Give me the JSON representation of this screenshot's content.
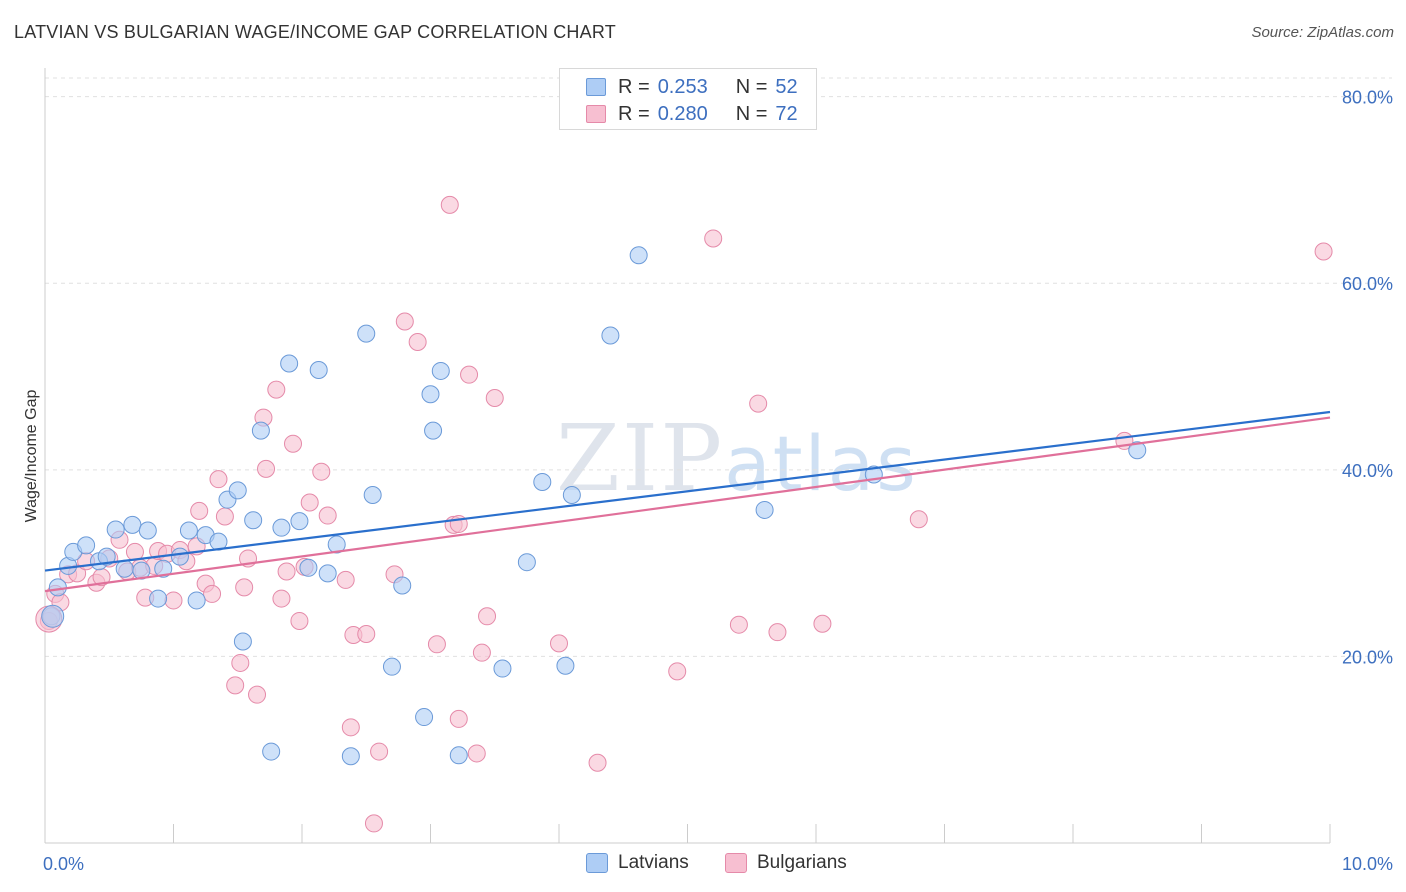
{
  "title": "LATVIAN VS BULGARIAN WAGE/INCOME GAP CORRELATION CHART",
  "source": "Source: ZipAtlas.com",
  "watermark": "ZIPatlas",
  "colors": {
    "latvian_fill": "#aecdf5",
    "latvian_stroke": "#6b9ad8",
    "latvian_line": "#2a6fcc",
    "bulgarian_fill": "#f7bfd1",
    "bulgarian_stroke": "#e58aa9",
    "bulgarian_line": "#e0709a",
    "tick_label": "#3d6fbf",
    "grid": "#e0e0e0"
  },
  "legend_top": [
    {
      "r_label": "R =",
      "r_value": "0.253",
      "n_label": "N =",
      "n_value": "52"
    },
    {
      "r_label": "R =",
      "r_value": "0.280",
      "n_label": "N =",
      "n_value": "72"
    }
  ],
  "chart_data": {
    "type": "scatter",
    "title": "LATVIAN VS BULGARIAN WAGE/INCOME GAP CORRELATION CHART",
    "xlabel": "",
    "ylabel": "Wage/Income Gap",
    "xlim": [
      0,
      10
    ],
    "ylim": [
      0,
      82
    ],
    "x_tick_labels": [
      "0.0%",
      "10.0%"
    ],
    "y_ticks": [
      20,
      40,
      60,
      80
    ],
    "y_tick_labels": [
      "20.0%",
      "40.0%",
      "60.0%",
      "80.0%"
    ],
    "grid": true,
    "legend_position": "bottom",
    "series": [
      {
        "name": "Latvians",
        "trend": {
          "x0": 0,
          "y0": 29.2,
          "x1": 10,
          "y1": 46.2
        },
        "points": [
          [
            0.05,
            24.3
          ],
          [
            0.1,
            27.4
          ],
          [
            0.18,
            29.7
          ],
          [
            0.22,
            31.2
          ],
          [
            0.32,
            31.9
          ],
          [
            0.42,
            30.2
          ],
          [
            0.48,
            30.7
          ],
          [
            0.55,
            33.6
          ],
          [
            0.62,
            29.4
          ],
          [
            0.68,
            34.1
          ],
          [
            0.75,
            29.2
          ],
          [
            0.8,
            33.5
          ],
          [
            0.88,
            26.2
          ],
          [
            0.92,
            29.4
          ],
          [
            1.05,
            30.7
          ],
          [
            1.12,
            33.5
          ],
          [
            1.18,
            26.0
          ],
          [
            1.25,
            33.0
          ],
          [
            1.35,
            32.3
          ],
          [
            1.42,
            36.8
          ],
          [
            1.5,
            37.8
          ],
          [
            1.54,
            21.6
          ],
          [
            1.62,
            34.6
          ],
          [
            1.68,
            44.2
          ],
          [
            1.76,
            9.8
          ],
          [
            1.84,
            33.8
          ],
          [
            1.9,
            51.4
          ],
          [
            1.98,
            34.5
          ],
          [
            2.05,
            29.5
          ],
          [
            2.13,
            50.7
          ],
          [
            2.2,
            28.9
          ],
          [
            2.27,
            32.0
          ],
          [
            2.38,
            9.3
          ],
          [
            2.5,
            54.6
          ],
          [
            2.55,
            37.3
          ],
          [
            2.7,
            18.9
          ],
          [
            2.78,
            27.6
          ],
          [
            2.95,
            13.5
          ],
          [
            3.0,
            48.1
          ],
          [
            3.02,
            44.2
          ],
          [
            3.08,
            50.6
          ],
          [
            3.22,
            9.4
          ],
          [
            3.56,
            18.7
          ],
          [
            3.75,
            30.1
          ],
          [
            3.87,
            38.7
          ],
          [
            4.05,
            19.0
          ],
          [
            4.1,
            37.3
          ],
          [
            4.4,
            54.4
          ],
          [
            4.62,
            63.0
          ],
          [
            5.6,
            35.7
          ],
          [
            6.45,
            39.5
          ],
          [
            8.5,
            42.1
          ]
        ]
      },
      {
        "name": "Bulgarians",
        "trend": {
          "x0": 0,
          "y0": 27.0,
          "x1": 10,
          "y1": 45.6
        },
        "points": [
          [
            0.03,
            23.8
          ],
          [
            0.08,
            26.7
          ],
          [
            0.12,
            25.8
          ],
          [
            0.18,
            28.8
          ],
          [
            0.25,
            28.9
          ],
          [
            0.32,
            30.2
          ],
          [
            0.4,
            27.9
          ],
          [
            0.44,
            28.5
          ],
          [
            0.5,
            30.5
          ],
          [
            0.58,
            32.5
          ],
          [
            0.64,
            29.1
          ],
          [
            0.7,
            31.2
          ],
          [
            0.74,
            29.5
          ],
          [
            0.78,
            26.3
          ],
          [
            0.85,
            29.7
          ],
          [
            0.88,
            31.3
          ],
          [
            0.95,
            31.0
          ],
          [
            1.0,
            26.0
          ],
          [
            1.05,
            31.4
          ],
          [
            1.1,
            30.2
          ],
          [
            1.18,
            31.8
          ],
          [
            1.2,
            35.6
          ],
          [
            1.25,
            27.8
          ],
          [
            1.3,
            26.7
          ],
          [
            1.35,
            39.0
          ],
          [
            1.4,
            35.0
          ],
          [
            1.48,
            16.9
          ],
          [
            1.52,
            19.3
          ],
          [
            1.55,
            27.4
          ],
          [
            1.58,
            30.5
          ],
          [
            1.65,
            15.9
          ],
          [
            1.7,
            45.6
          ],
          [
            1.72,
            40.1
          ],
          [
            1.8,
            48.6
          ],
          [
            1.84,
            26.2
          ],
          [
            1.88,
            29.1
          ],
          [
            1.93,
            42.8
          ],
          [
            1.98,
            23.8
          ],
          [
            2.02,
            29.6
          ],
          [
            2.06,
            36.5
          ],
          [
            2.15,
            39.8
          ],
          [
            2.2,
            35.1
          ],
          [
            2.34,
            28.2
          ],
          [
            2.38,
            12.4
          ],
          [
            2.4,
            22.3
          ],
          [
            2.5,
            22.4
          ],
          [
            2.56,
            2.1
          ],
          [
            2.6,
            9.8
          ],
          [
            2.72,
            28.8
          ],
          [
            2.8,
            55.9
          ],
          [
            2.9,
            53.7
          ],
          [
            3.05,
            21.3
          ],
          [
            3.15,
            68.4
          ],
          [
            3.18,
            34.1
          ],
          [
            3.22,
            13.3
          ],
          [
            3.36,
            9.6
          ],
          [
            3.44,
            24.3
          ],
          [
            3.4,
            20.4
          ],
          [
            3.5,
            47.7
          ],
          [
            3.22,
            34.2
          ],
          [
            3.3,
            50.2
          ],
          [
            4.0,
            21.4
          ],
          [
            4.3,
            8.6
          ],
          [
            4.92,
            18.4
          ],
          [
            5.2,
            64.8
          ],
          [
            5.55,
            47.1
          ],
          [
            5.7,
            22.6
          ],
          [
            6.05,
            23.5
          ],
          [
            6.8,
            34.7
          ],
          [
            8.4,
            43.1
          ],
          [
            9.95,
            63.4
          ],
          [
            5.4,
            23.4
          ]
        ]
      }
    ]
  },
  "legend_bottom": [
    "Latvians",
    "Bulgarians"
  ]
}
